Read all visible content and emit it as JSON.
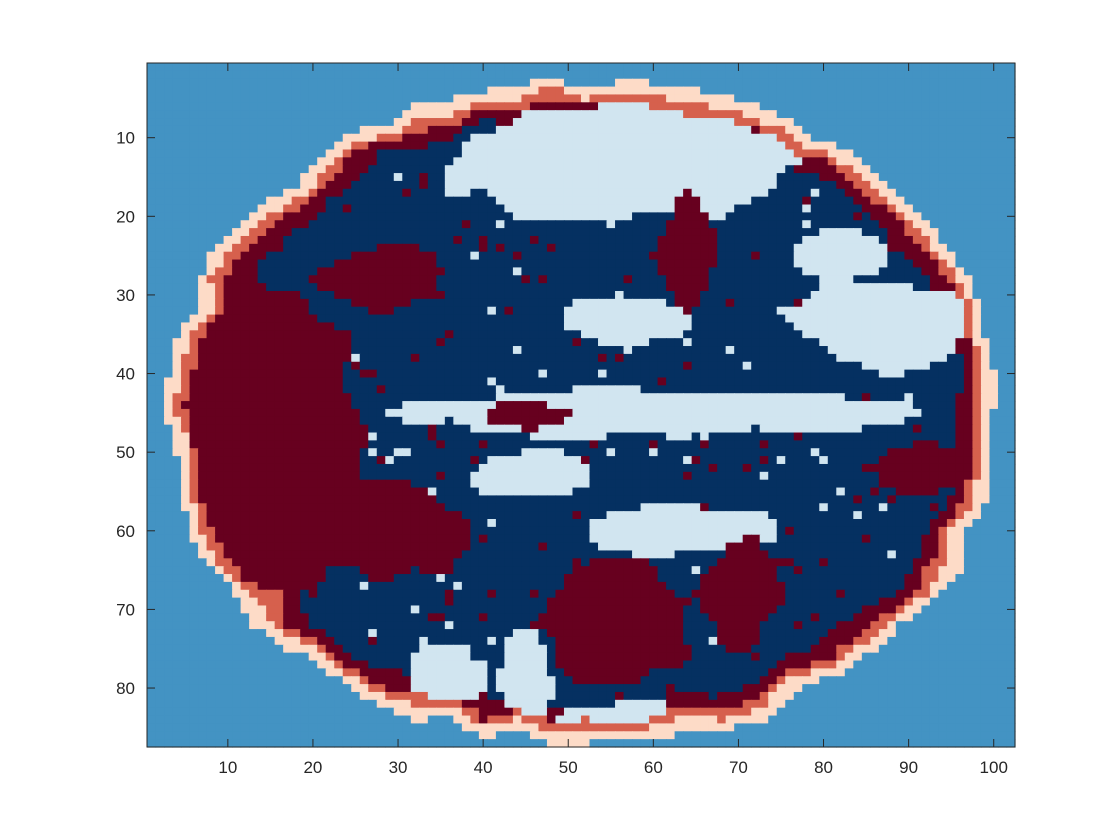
{
  "chart_data": {
    "type": "heatmap",
    "title": "",
    "xlabel": "",
    "ylabel": "",
    "xlim": [
      0.5,
      102.5
    ],
    "ylim": [
      0.5,
      87.5
    ],
    "y_reversed": true,
    "grid": false,
    "legend": "none",
    "x_ticks": [
      10,
      20,
      30,
      40,
      50,
      60,
      70,
      80,
      90,
      100
    ],
    "y_ticks": [
      10,
      20,
      30,
      40,
      50,
      60,
      70,
      80
    ],
    "x_tick_labels": [
      "10",
      "20",
      "30",
      "40",
      "50",
      "60",
      "70",
      "80",
      "90",
      "100"
    ],
    "y_tick_labels": [
      "10",
      "20",
      "30",
      "40",
      "50",
      "60",
      "70",
      "80"
    ],
    "palette": {
      "background": "#4393c3",
      "outer_ring": "#fddbc7",
      "inner_ring": "#d6604d",
      "dark_red": "#67001f",
      "dark_blue": "#053061",
      "light_blue": "#d1e5f0"
    },
    "class_codes": {
      "0": "background",
      "1": "outer_ring",
      "2": "inner_ring",
      "3": "dark_red",
      "4": "dark_blue",
      "5": "light_blue"
    },
    "approximate_regions": {
      "ellipse_center": [
        52,
        45
      ],
      "ellipse_semi_axes": [
        49,
        42
      ],
      "dark_red_blobs": [
        {
          "cx": 15,
          "cy": 48,
          "rx": 11,
          "ry": 20
        },
        {
          "cx": 28,
          "cy": 60,
          "rx": 10,
          "ry": 6
        },
        {
          "cx": 28,
          "cy": 28,
          "rx": 8,
          "ry": 4
        },
        {
          "cx": 55,
          "cy": 72,
          "rx": 9,
          "ry": 8
        },
        {
          "cx": 70,
          "cy": 68,
          "rx": 5,
          "ry": 7
        },
        {
          "cx": 64,
          "cy": 25,
          "rx": 3,
          "ry": 8
        },
        {
          "cx": 92,
          "cy": 52,
          "rx": 6,
          "ry": 3
        },
        {
          "cx": 45,
          "cy": 45,
          "rx": 5,
          "ry": 2
        }
      ],
      "light_blue_blobs": [
        {
          "cx": 57,
          "cy": 13,
          "rx": 20,
          "ry": 8
        },
        {
          "cx": 88,
          "cy": 34,
          "rx": 11,
          "ry": 6
        },
        {
          "cx": 60,
          "cy": 45,
          "rx": 30,
          "ry": 3
        },
        {
          "cx": 57,
          "cy": 33,
          "rx": 8,
          "ry": 3
        },
        {
          "cx": 45,
          "cy": 53,
          "rx": 7,
          "ry": 3
        },
        {
          "cx": 62,
          "cy": 60,
          "rx": 12,
          "ry": 3
        },
        {
          "cx": 45,
          "cy": 78,
          "rx": 3,
          "ry": 6
        },
        {
          "cx": 36,
          "cy": 78,
          "rx": 5,
          "ry": 4
        },
        {
          "cx": 58,
          "cy": 84,
          "rx": 8,
          "ry": 2
        },
        {
          "cx": 82,
          "cy": 25,
          "rx": 6,
          "ry": 3
        }
      ]
    }
  }
}
